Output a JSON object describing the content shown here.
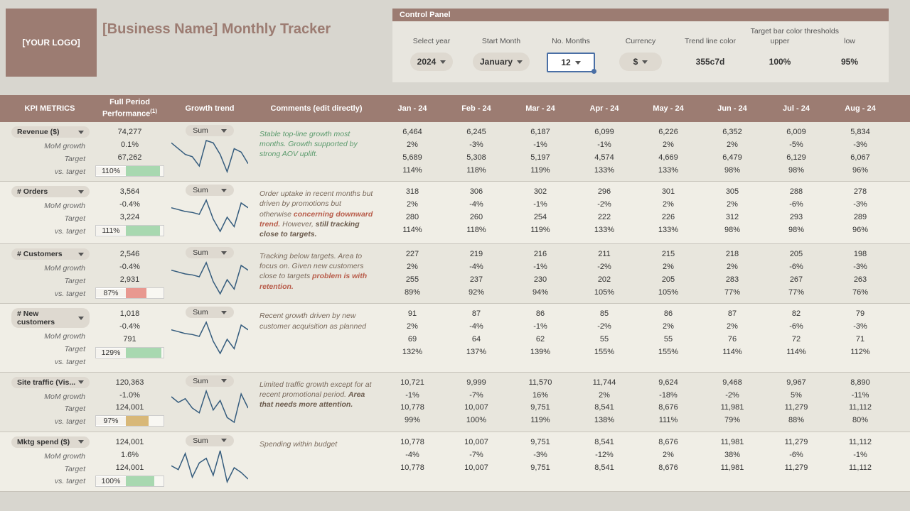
{
  "logo_text": "[YOUR LOGO]",
  "page_title": "[Business Name] Monthly Tracker",
  "control_panel": {
    "title": "Control Panel",
    "thresholds_label": "Target bar color thresholds",
    "cols": [
      {
        "label": "Select year",
        "value": "2024",
        "dropdown": true
      },
      {
        "label": "Start Month",
        "value": "January",
        "dropdown": true
      },
      {
        "label": "No. Months",
        "value": "12",
        "dropdown": true,
        "selected": true
      },
      {
        "label": "Currency",
        "value": "$",
        "dropdown": true
      },
      {
        "label": "Trend line color",
        "value": "355c7d",
        "dropdown": false
      },
      {
        "label": "upper",
        "value": "100%",
        "dropdown": false
      },
      {
        "label": "low",
        "value": "95%",
        "dropdown": false
      }
    ]
  },
  "headers": {
    "kpi": "KPI METRICS",
    "perf": "Full Period Performance",
    "perf_sup": "(1)",
    "trend": "Growth trend",
    "comment": "Comments (edit directly)",
    "months": [
      "Jan - 24",
      "Feb - 24",
      "Mar - 24",
      "Apr - 24",
      "May - 24",
      "Jun - 24",
      "Jul - 24",
      "Aug - 24"
    ]
  },
  "row_labels": {
    "mom": "MoM growth",
    "target": "Target",
    "vs": "vs. target"
  },
  "agg_label": "Sum",
  "bar_colors": {
    "good": "#a8d8b0",
    "warn": "#d8b878",
    "bad": "#e89890"
  },
  "spark_color": "#355c7d",
  "metrics": [
    {
      "name": "Revenue ($)",
      "perf": {
        "value": "74,277",
        "mom": "0.1%",
        "target": "67,262",
        "vs": "110%",
        "bar_pct": 90,
        "bar_color": "good"
      },
      "spark": [
        60,
        55,
        50,
        48,
        40,
        62,
        60,
        50,
        35,
        55,
        52,
        42
      ],
      "comment_html": "<span class='good'>Stable top-line growth most months. Growth supported by strong AOV uplift.</span>",
      "months": [
        {
          "v": "6,464",
          "m": "2%",
          "t": "5,689",
          "p": "114%"
        },
        {
          "v": "6,245",
          "m": "-3%",
          "t": "5,308",
          "p": "118%"
        },
        {
          "v": "6,187",
          "m": "-1%",
          "t": "5,197",
          "p": "119%"
        },
        {
          "v": "6,099",
          "m": "-1%",
          "t": "4,574",
          "p": "133%"
        },
        {
          "v": "6,226",
          "m": "2%",
          "t": "4,669",
          "p": "133%"
        },
        {
          "v": "6,352",
          "m": "2%",
          "t": "6,479",
          "p": "98%"
        },
        {
          "v": "6,009",
          "m": "-5%",
          "t": "6,129",
          "p": "98%"
        },
        {
          "v": "5,834",
          "m": "-3%",
          "t": "6,067",
          "p": "96%"
        }
      ]
    },
    {
      "name": "# Orders",
      "perf": {
        "value": "3,564",
        "mom": "-0.4%",
        "target": "3,224",
        "vs": "111%",
        "bar_pct": 90,
        "bar_color": "good"
      },
      "spark": [
        40,
        38,
        36,
        35,
        33,
        48,
        28,
        15,
        30,
        20,
        45,
        40
      ],
      "comment_html": "Order uptake in recent months but driven by promotions but otherwise <span class='bad'>concerning downward trend.</span> However, <b>still tracking close to targets.</b>",
      "months": [
        {
          "v": "318",
          "m": "2%",
          "t": "280",
          "p": "114%"
        },
        {
          "v": "306",
          "m": "-4%",
          "t": "260",
          "p": "118%"
        },
        {
          "v": "302",
          "m": "-1%",
          "t": "254",
          "p": "119%"
        },
        {
          "v": "296",
          "m": "-2%",
          "t": "222",
          "p": "133%"
        },
        {
          "v": "301",
          "m": "2%",
          "t": "226",
          "p": "133%"
        },
        {
          "v": "305",
          "m": "2%",
          "t": "312",
          "p": "98%"
        },
        {
          "v": "288",
          "m": "-6%",
          "t": "293",
          "p": "98%"
        },
        {
          "v": "278",
          "m": "-3%",
          "t": "289",
          "p": "96%"
        }
      ]
    },
    {
      "name": "# Customers",
      "perf": {
        "value": "2,546",
        "mom": "-0.4%",
        "target": "2,931",
        "vs": "87%",
        "bar_pct": 55,
        "bar_color": "bad"
      },
      "spark": [
        40,
        38,
        36,
        35,
        33,
        48,
        28,
        15,
        30,
        20,
        45,
        40
      ],
      "comment_html": "Tracking below targets. Area to focus on. Given new customers close to targets <span class='bad'>problem is with retention.</span>",
      "months": [
        {
          "v": "227",
          "m": "2%",
          "t": "255",
          "p": "89%"
        },
        {
          "v": "219",
          "m": "-4%",
          "t": "237",
          "p": "92%"
        },
        {
          "v": "216",
          "m": "-1%",
          "t": "230",
          "p": "94%"
        },
        {
          "v": "211",
          "m": "-2%",
          "t": "202",
          "p": "105%"
        },
        {
          "v": "215",
          "m": "2%",
          "t": "205",
          "p": "105%"
        },
        {
          "v": "218",
          "m": "2%",
          "t": "283",
          "p": "77%"
        },
        {
          "v": "205",
          "m": "-6%",
          "t": "267",
          "p": "77%"
        },
        {
          "v": "198",
          "m": "-3%",
          "t": "263",
          "p": "76%"
        }
      ]
    },
    {
      "name": "# New customers",
      "perf": {
        "value": "1,018",
        "mom": "-0.4%",
        "target": "791",
        "vs": "129%",
        "bar_pct": 95,
        "bar_color": "good"
      },
      "spark": [
        40,
        38,
        36,
        35,
        33,
        48,
        28,
        15,
        30,
        20,
        45,
        40
      ],
      "comment_html": "Recent growth driven by new customer acquisition as planned",
      "months": [
        {
          "v": "91",
          "m": "2%",
          "t": "69",
          "p": "132%"
        },
        {
          "v": "87",
          "m": "-4%",
          "t": "64",
          "p": "137%"
        },
        {
          "v": "86",
          "m": "-1%",
          "t": "62",
          "p": "139%"
        },
        {
          "v": "85",
          "m": "-2%",
          "t": "55",
          "p": "155%"
        },
        {
          "v": "86",
          "m": "2%",
          "t": "55",
          "p": "155%"
        },
        {
          "v": "87",
          "m": "2%",
          "t": "76",
          "p": "114%"
        },
        {
          "v": "82",
          "m": "-6%",
          "t": "72",
          "p": "114%"
        },
        {
          "v": "79",
          "m": "-3%",
          "t": "71",
          "p": "112%"
        }
      ]
    },
    {
      "name": "Site traffic (Vis...",
      "perf": {
        "value": "120,363",
        "mom": "-1.0%",
        "target": "124,001",
        "vs": "97%",
        "bar_pct": 60,
        "bar_color": "warn"
      },
      "spark": [
        42,
        36,
        40,
        30,
        25,
        48,
        28,
        38,
        20,
        15,
        45,
        30
      ],
      "comment_html": "Limited traffic growth except for at recent promotional period. <b>Area that needs more attention.</b>",
      "months": [
        {
          "v": "10,721",
          "m": "-1%",
          "t": "10,778",
          "p": "99%"
        },
        {
          "v": "9,999",
          "m": "-7%",
          "t": "10,007",
          "p": "100%"
        },
        {
          "v": "11,570",
          "m": "16%",
          "t": "9,751",
          "p": "119%"
        },
        {
          "v": "11,744",
          "m": "2%",
          "t": "8,541",
          "p": "138%"
        },
        {
          "v": "9,624",
          "m": "-18%",
          "t": "8,676",
          "p": "111%"
        },
        {
          "v": "9,468",
          "m": "-2%",
          "t": "11,981",
          "p": "79%"
        },
        {
          "v": "9,967",
          "m": "5%",
          "t": "11,279",
          "p": "88%"
        },
        {
          "v": "8,890",
          "m": "-11%",
          "t": "11,112",
          "p": "80%"
        }
      ]
    },
    {
      "name": "Mktg spend ($)",
      "perf": {
        "value": "124,001",
        "mom": "1.6%",
        "target": "124,001",
        "vs": "100%",
        "bar_pct": 75,
        "bar_color": "good"
      },
      "spark": [
        32,
        28,
        45,
        20,
        35,
        40,
        22,
        48,
        15,
        30,
        25,
        18
      ],
      "comment_html": "Spending within budget",
      "months": [
        {
          "v": "10,778",
          "m": "-4%",
          "t": "10,778",
          "p": ""
        },
        {
          "v": "10,007",
          "m": "-7%",
          "t": "10,007",
          "p": ""
        },
        {
          "v": "9,751",
          "m": "-3%",
          "t": "9,751",
          "p": ""
        },
        {
          "v": "8,541",
          "m": "-12%",
          "t": "8,541",
          "p": ""
        },
        {
          "v": "8,676",
          "m": "2%",
          "t": "8,676",
          "p": ""
        },
        {
          "v": "11,981",
          "m": "38%",
          "t": "11,981",
          "p": ""
        },
        {
          "v": "11,279",
          "m": "-6%",
          "t": "11,279",
          "p": ""
        },
        {
          "v": "11,112",
          "m": "-1%",
          "t": "11,112",
          "p": ""
        }
      ]
    }
  ]
}
